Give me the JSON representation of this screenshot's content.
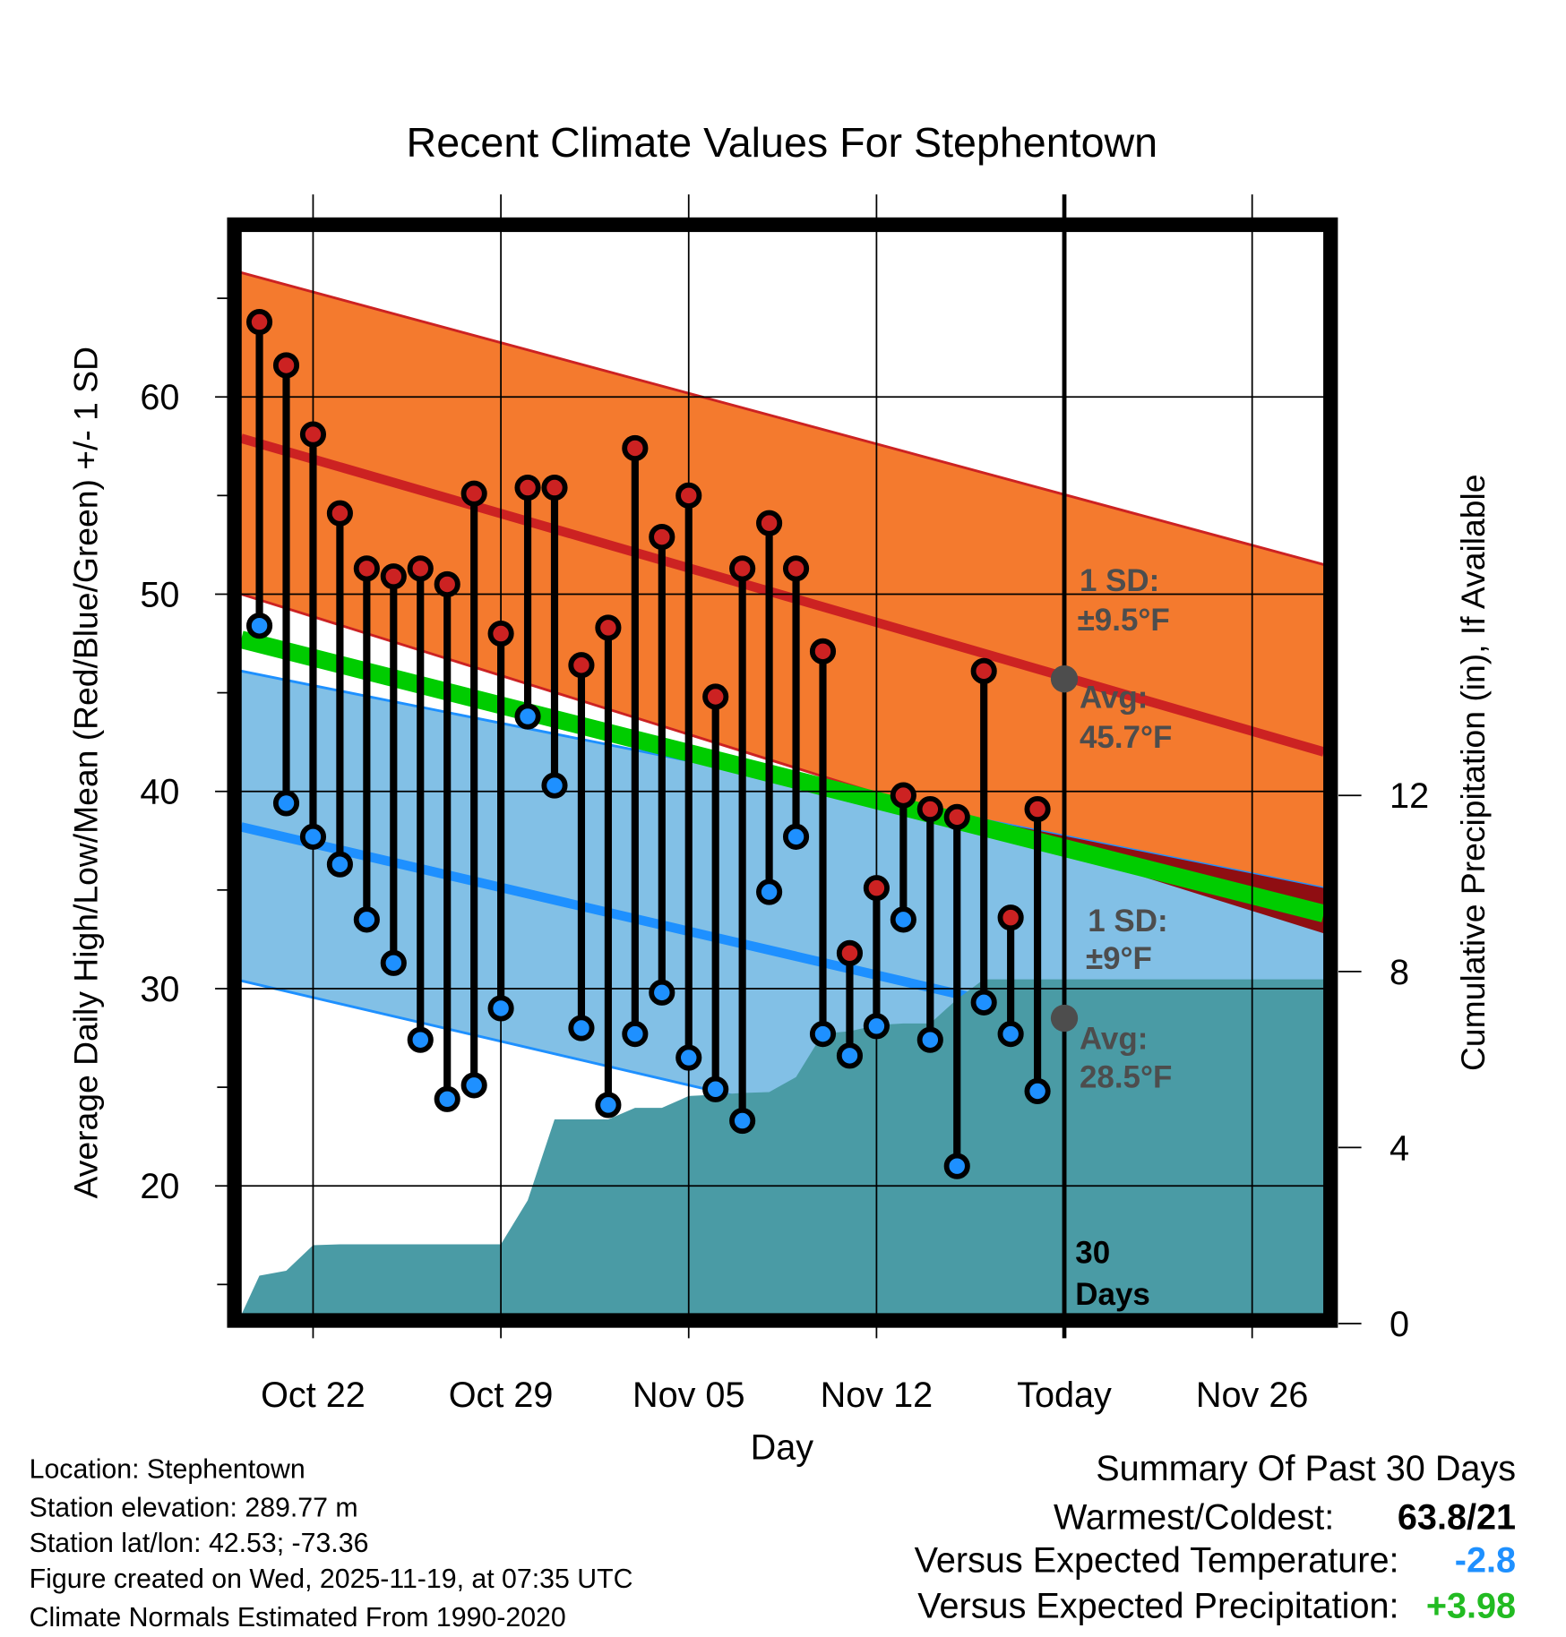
{
  "chart_data": {
    "type": "line",
    "title": "Recent Climate Values For Stephentown",
    "xlabel": "Day",
    "ylabel": "Average Daily High/Low/Mean (Red/Blue/Green) +/- 1 SD",
    "y2label": "Cumulative Precipitation (in), If Available",
    "ylim": [
      13.44,
      68.36
    ],
    "y2lim": [
      0,
      24.8
    ],
    "xlim_days_from_oct22": [
      -2.68,
      37.67
    ],
    "yticks": [
      20,
      30,
      40,
      50,
      60
    ],
    "y2ticks": [
      0,
      4,
      8,
      12
    ],
    "xticks": [
      {
        "day": 0,
        "label": "Oct 22"
      },
      {
        "day": 7,
        "label": "Oct 29"
      },
      {
        "day": 14,
        "label": "Nov 05"
      },
      {
        "day": 21,
        "label": "Nov 12"
      },
      {
        "day": 28,
        "label": "Today"
      },
      {
        "day": 35,
        "label": "Nov 26"
      }
    ],
    "grid": true,
    "dates": [
      "Oct 20",
      "Oct 21",
      "Oct 22",
      "Oct 23",
      "Oct 24",
      "Oct 25",
      "Oct 26",
      "Oct 27",
      "Oct 28",
      "Oct 29",
      "Oct 30",
      "Oct 31",
      "Nov 01",
      "Nov 02",
      "Nov 03",
      "Nov 04",
      "Nov 05",
      "Nov 06",
      "Nov 07",
      "Nov 08",
      "Nov 09",
      "Nov 10",
      "Nov 11",
      "Nov 12",
      "Nov 13",
      "Nov 14",
      "Nov 15",
      "Nov 16",
      "Nov 17",
      "Nov 18"
    ],
    "series": [
      {
        "name": "Daily High",
        "color": "#cc2222",
        "values": [
          63.8,
          61.6,
          58.1,
          54.1,
          51.3,
          50.9,
          51.3,
          50.5,
          55.1,
          48.0,
          55.4,
          55.4,
          46.4,
          48.3,
          57.4,
          52.9,
          55.0,
          44.8,
          51.3,
          53.6,
          51.3,
          47.1,
          31.8,
          35.1,
          39.8,
          39.1,
          38.7,
          46.1,
          33.6,
          39.1
        ]
      },
      {
        "name": "Daily Low",
        "color": "#1e90ff",
        "values": [
          48.4,
          39.4,
          37.7,
          36.3,
          33.5,
          31.3,
          27.4,
          24.4,
          25.1,
          29.0,
          43.8,
          40.3,
          28.0,
          24.1,
          27.7,
          29.8,
          26.5,
          24.9,
          23.3,
          34.9,
          37.7,
          27.7,
          26.6,
          28.1,
          33.5,
          27.4,
          21.0,
          29.3,
          27.7,
          24.8
        ]
      },
      {
        "name": "Cumulative Precipitation (in)",
        "color": "#4a9ba5",
        "values": [
          1.09,
          1.2,
          1.78,
          1.8,
          1.8,
          1.8,
          1.8,
          1.8,
          1.8,
          1.8,
          2.8,
          4.64,
          4.64,
          4.64,
          4.9,
          4.9,
          5.17,
          5.2,
          5.24,
          5.26,
          5.6,
          6.59,
          6.64,
          6.78,
          6.82,
          6.82,
          7.37,
          7.82,
          7.82,
          7.82
        ]
      }
    ],
    "normals": {
      "high_upper": [
        66.3,
        51.5
      ],
      "high_avg": [
        57.9,
        42.0
      ],
      "high_lower": [
        50.0,
        32.8
      ],
      "low_upper": [
        46.1,
        35.1
      ],
      "low_avg": [
        38.2,
        25.4
      ],
      "low_lower": [
        30.4,
        17.6
      ],
      "mean": [
        47.7,
        33.8
      ]
    },
    "annotations": {
      "high_sd_label": "1 SD:",
      "high_sd_value": "±9.5°F",
      "high_avg_label": "Avg:",
      "high_avg_value": "45.7°F",
      "high_avg": 45.7,
      "low_sd_label": "1 SD:",
      "low_sd_value": "±9°F",
      "low_avg_label": "Avg:",
      "low_avg_value": "28.5°F",
      "low_avg": 28.5,
      "days_count": "30",
      "days_label": "Days"
    }
  },
  "colors": {
    "high_band": "#f47a2e",
    "high_line": "#cc2222",
    "low_band": "#82c0e6",
    "low_line": "#1e90ff",
    "mean_line": "#00cc00",
    "overlap": "#8f0e12",
    "precip": "#4a9ba5"
  },
  "footer": {
    "location": "Location: Stephentown",
    "elevation": "Station elevation: 289.77 m",
    "latlon": "Station lat/lon: 42.53; -73.36",
    "created": "Figure created on Wed, 2025-11-19, at 07:35 UTC",
    "normals": "Climate Normals Estimated From 1990-2020"
  },
  "summary": {
    "title": "Summary Of Past 30 Days",
    "warmest_label": "Warmest/Coldest:",
    "warmest_value": "63.8/21",
    "temp_label": "Versus Expected Temperature:",
    "temp_value": "-2.8",
    "precip_label": "Versus Expected Precipitation:",
    "precip_value": "+3.98"
  }
}
